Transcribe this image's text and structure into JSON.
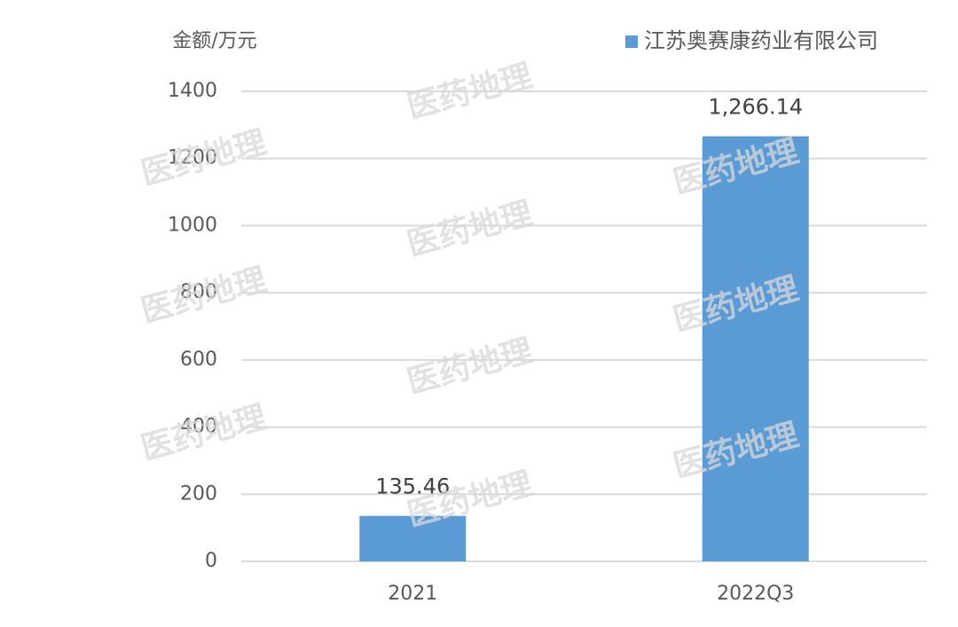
{
  "chart_data": {
    "type": "bar",
    "y_label": "金额/万元",
    "watermark": "医药地理",
    "categories": [
      "2021",
      "2022Q3"
    ],
    "series": [
      {
        "name": "江苏奥赛康药业有限公司",
        "color": "#5b9bd5",
        "values": [
          135.46,
          1266.14
        ],
        "value_labels": [
          "135.46",
          "1,266.14"
        ]
      }
    ],
    "ylim": [
      0,
      1400
    ],
    "yticks": [
      0,
      200,
      400,
      600,
      800,
      1000,
      1200,
      1400
    ],
    "grid": true,
    "legend": "top-right"
  }
}
